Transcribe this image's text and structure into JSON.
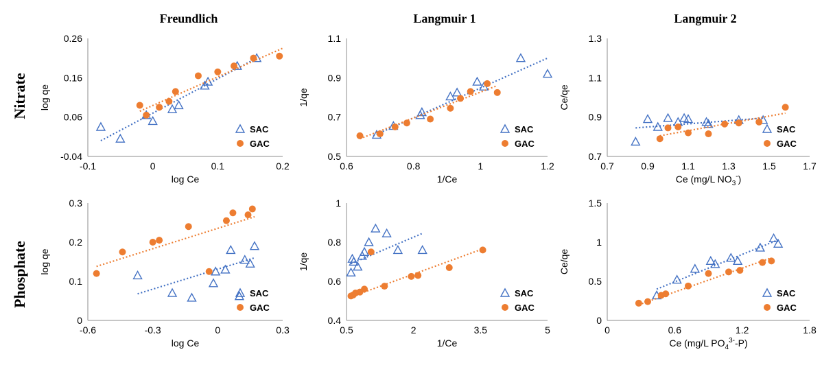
{
  "figure": {
    "column_titles": [
      "Freundlich",
      "Langmuir 1",
      "Langmuir 2"
    ],
    "row_titles": [
      "Nitrate",
      "Phosphate"
    ]
  },
  "colors": {
    "SAC": "#4472c4",
    "GAC": "#ed7d31"
  },
  "chart_data": [
    {
      "id": "nitrate-freundlich",
      "type": "scatter",
      "xlabel": "log Ce",
      "ylabel": "log qe",
      "xlim": [
        -0.1,
        0.2
      ],
      "ylim": [
        -0.04,
        0.26
      ],
      "xticks": [
        "-0.1",
        "0",
        "0.1",
        "0.2"
      ],
      "yticks": [
        "-0.04",
        "0.06",
        "0.16",
        "0.26"
      ],
      "legend": [
        "SAC",
        "GAC"
      ],
      "series": [
        {
          "name": "SAC",
          "marker": "triangle",
          "x": [
            -0.08,
            -0.05,
            -0.01,
            0.0,
            0.03,
            0.04,
            0.08,
            0.085,
            0.13,
            0.16
          ],
          "y": [
            0.035,
            0.005,
            0.065,
            0.05,
            0.08,
            0.09,
            0.14,
            0.15,
            0.19,
            0.21
          ],
          "trend": [
            [
              -0.08,
              0.0
            ],
            [
              0.16,
              0.21
            ]
          ]
        },
        {
          "name": "GAC",
          "marker": "circle",
          "x": [
            -0.02,
            -0.01,
            0.01,
            0.025,
            0.035,
            0.07,
            0.1,
            0.125,
            0.155,
            0.195
          ],
          "y": [
            0.09,
            0.065,
            0.085,
            0.1,
            0.125,
            0.165,
            0.175,
            0.19,
            0.21,
            0.215
          ],
          "trend": [
            [
              -0.02,
              0.075
            ],
            [
              0.2,
              0.235
            ]
          ]
        }
      ]
    },
    {
      "id": "nitrate-langmuir1",
      "type": "scatter",
      "xlabel": "1/Ce",
      "ylabel": "1/qe",
      "xlim": [
        0.6,
        1.2
      ],
      "ylim": [
        0.5,
        1.1
      ],
      "xticks": [
        "0.6",
        "0.8",
        "1",
        "1.2"
      ],
      "yticks": [
        "0.5",
        "0.7",
        "0.9",
        "1.1"
      ],
      "legend": [
        "SAC",
        "GAC"
      ],
      "series": [
        {
          "name": "SAC",
          "marker": "triangle",
          "x": [
            0.69,
            0.74,
            0.82,
            0.825,
            0.91,
            0.93,
            0.99,
            1.01,
            1.12,
            1.2
          ],
          "y": [
            0.61,
            0.655,
            0.71,
            0.725,
            0.805,
            0.825,
            0.88,
            0.855,
            1.0,
            0.92
          ],
          "trend": [
            [
              0.68,
              0.605
            ],
            [
              1.2,
              1.0
            ]
          ]
        },
        {
          "name": "GAC",
          "marker": "circle",
          "x": [
            0.64,
            0.7,
            0.745,
            0.78,
            0.85,
            0.91,
            0.94,
            0.97,
            1.02,
            1.05
          ],
          "y": [
            0.605,
            0.615,
            0.65,
            0.67,
            0.69,
            0.745,
            0.795,
            0.83,
            0.87,
            0.825
          ],
          "trend": [
            [
              0.64,
              0.59
            ],
            [
              1.05,
              0.86
            ]
          ]
        }
      ]
    },
    {
      "id": "nitrate-langmuir2",
      "type": "scatter",
      "xlabel": "Ce (mg/L NO",
      "xlabel_sub": "3",
      "xlabel_sup": "-",
      "xlabel_tail": ")",
      "ylabel": "Ce/qe",
      "xlim": [
        0.7,
        1.7
      ],
      "ylim": [
        0.7,
        1.3
      ],
      "xticks": [
        "0.7",
        "0.9",
        "1.1",
        "1.3",
        "1.5",
        "1.7"
      ],
      "yticks": [
        "0.7",
        "0.9",
        "1.1",
        "1.3"
      ],
      "legend": [
        "SAC",
        "GAC"
      ],
      "series": [
        {
          "name": "SAC",
          "marker": "triangle",
          "x": [
            0.84,
            0.9,
            0.95,
            1.0,
            1.05,
            1.08,
            1.1,
            1.19,
            1.2,
            1.35,
            1.47
          ],
          "y": [
            0.775,
            0.89,
            0.85,
            0.895,
            0.875,
            0.895,
            0.89,
            0.875,
            0.865,
            0.885,
            0.885
          ],
          "trend": [
            [
              0.84,
              0.845
            ],
            [
              1.47,
              0.895
            ]
          ]
        },
        {
          "name": "GAC",
          "marker": "circle",
          "x": [
            0.96,
            1.0,
            1.05,
            1.1,
            1.2,
            1.28,
            1.35,
            1.45,
            1.58
          ],
          "y": [
            0.79,
            0.845,
            0.85,
            0.82,
            0.815,
            0.865,
            0.87,
            0.875,
            0.95
          ],
          "trend": [
            [
              0.96,
              0.805
            ],
            [
              1.58,
              0.92
            ]
          ]
        }
      ]
    },
    {
      "id": "phosphate-freundlich",
      "type": "scatter",
      "xlabel": "log Ce",
      "ylabel": "log qe",
      "xlim": [
        -0.6,
        0.3
      ],
      "ylim": [
        0,
        0.3
      ],
      "xticks": [
        "-0.6",
        "-0.3",
        "0",
        "0.3"
      ],
      "yticks": [
        "0",
        "0.1",
        "0.2",
        "0.3"
      ],
      "legend": [
        "SAC",
        "GAC"
      ],
      "series": [
        {
          "name": "SAC",
          "marker": "triangle",
          "x": [
            -0.37,
            -0.21,
            -0.12,
            -0.02,
            -0.01,
            0.035,
            0.06,
            0.1,
            0.125,
            0.15,
            0.17
          ],
          "y": [
            0.115,
            0.07,
            0.058,
            0.095,
            0.125,
            0.13,
            0.18,
            0.062,
            0.155,
            0.145,
            0.19
          ],
          "trend": [
            [
              -0.37,
              0.068
            ],
            [
              0.17,
              0.16
            ]
          ]
        },
        {
          "name": "GAC",
          "marker": "circle",
          "x": [
            -0.56,
            -0.44,
            -0.3,
            -0.27,
            -0.135,
            -0.04,
            0.04,
            0.07,
            0.14,
            0.16
          ],
          "y": [
            0.12,
            0.175,
            0.2,
            0.205,
            0.24,
            0.125,
            0.255,
            0.275,
            0.27,
            0.285
          ],
          "trend": [
            [
              -0.56,
              0.138
            ],
            [
              0.17,
              0.265
            ]
          ]
        }
      ]
    },
    {
      "id": "phosphate-langmuir1",
      "type": "scatter",
      "xlabel": "1/Ce",
      "ylabel": "1/qe",
      "xlim": [
        0.5,
        5
      ],
      "ylim": [
        0.4,
        1
      ],
      "xticks": [
        "0.5",
        "2",
        "3.5",
        "5"
      ],
      "yticks": [
        "0.4",
        "0.6",
        "0.8",
        "1"
      ],
      "legend": [
        "SAC",
        "GAC"
      ],
      "series": [
        {
          "name": "SAC",
          "marker": "triangle",
          "x": [
            0.6,
            0.63,
            0.66,
            0.75,
            0.85,
            0.9,
            1.0,
            1.15,
            1.4,
            1.65,
            2.2
          ],
          "y": [
            0.645,
            0.715,
            0.7,
            0.675,
            0.73,
            0.75,
            0.8,
            0.87,
            0.845,
            0.76,
            0.76
          ],
          "trend": [
            [
              0.6,
              0.69
            ],
            [
              2.2,
              0.845
            ]
          ]
        },
        {
          "name": "GAC",
          "marker": "circle",
          "x": [
            0.6,
            0.65,
            0.7,
            0.8,
            0.9,
            1.05,
            1.35,
            1.95,
            2.1,
            2.8,
            3.55
          ],
          "y": [
            0.525,
            0.53,
            0.54,
            0.545,
            0.56,
            0.75,
            0.575,
            0.625,
            0.63,
            0.67,
            0.76
          ],
          "trend": [
            [
              0.6,
              0.52
            ],
            [
              3.6,
              0.77
            ]
          ]
        }
      ]
    },
    {
      "id": "phosphate-langmuir2",
      "type": "scatter",
      "xlabel": "Ce (mg/L PO",
      "xlabel_sub": "4",
      "xlabel_sup": "3-",
      "xlabel_tail": "-P)",
      "ylabel": "Ce/qe",
      "xlim": [
        0,
        1.8
      ],
      "ylim": [
        0,
        1.5
      ],
      "xticks": [
        "0",
        "0.6",
        "1.2",
        "1.8"
      ],
      "yticks": [
        "0",
        "0.5",
        "1",
        "1.5"
      ],
      "legend": [
        "SAC",
        "GAC"
      ],
      "series": [
        {
          "name": "SAC",
          "marker": "triangle",
          "x": [
            0.44,
            0.62,
            0.78,
            0.92,
            0.96,
            1.1,
            1.16,
            1.36,
            1.48,
            1.52
          ],
          "y": [
            0.32,
            0.52,
            0.66,
            0.76,
            0.72,
            0.8,
            0.76,
            0.93,
            1.05,
            0.98
          ],
          "trend": [
            [
              0.44,
              0.4
            ],
            [
              1.52,
              1.03
            ]
          ]
        },
        {
          "name": "GAC",
          "marker": "circle",
          "x": [
            0.28,
            0.36,
            0.48,
            0.52,
            0.72,
            0.9,
            1.08,
            1.18,
            1.38,
            1.46
          ],
          "y": [
            0.22,
            0.24,
            0.32,
            0.34,
            0.44,
            0.6,
            0.62,
            0.64,
            0.74,
            0.76
          ],
          "trend": [
            [
              0.28,
              0.2
            ],
            [
              1.46,
              0.8
            ]
          ]
        }
      ]
    }
  ]
}
